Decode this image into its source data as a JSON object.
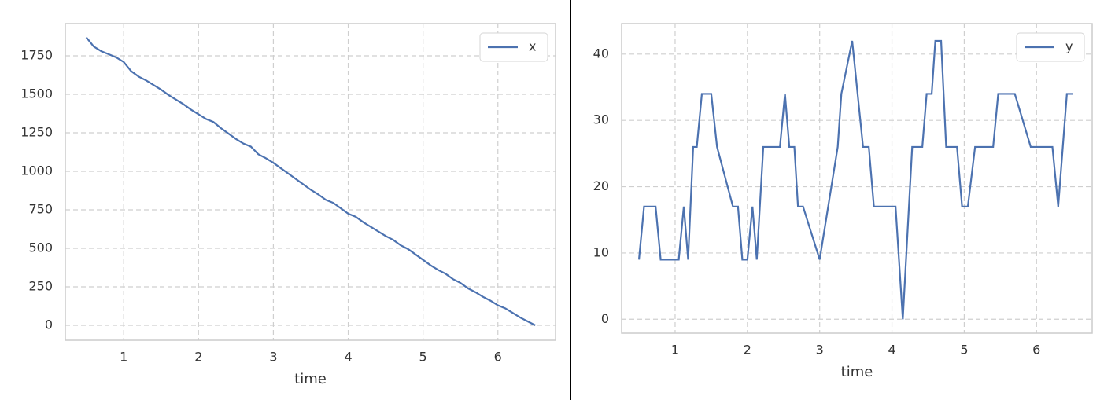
{
  "chart_data": [
    {
      "type": "line",
      "xlabel": "time",
      "x": [
        0.5,
        0.6,
        0.7,
        0.8,
        0.9,
        1.0,
        1.1,
        1.2,
        1.3,
        1.4,
        1.5,
        1.6,
        1.7,
        1.8,
        1.9,
        2.0,
        2.1,
        2.2,
        2.3,
        2.4,
        2.5,
        2.6,
        2.7,
        2.8,
        2.9,
        3.0,
        3.1,
        3.2,
        3.3,
        3.4,
        3.5,
        3.6,
        3.7,
        3.8,
        3.9,
        4.0,
        4.1,
        4.2,
        4.3,
        4.4,
        4.5,
        4.6,
        4.7,
        4.8,
        4.9,
        5.0,
        5.1,
        5.2,
        5.3,
        5.4,
        5.5,
        5.6,
        5.7,
        5.8,
        5.9,
        6.0,
        6.1,
        6.2,
        6.3,
        6.4,
        6.5
      ],
      "series": [
        {
          "name": "x",
          "color": "#4c72b0",
          "values": [
            1870,
            1810,
            1780,
            1760,
            1740,
            1710,
            1650,
            1615,
            1590,
            1560,
            1530,
            1495,
            1465,
            1435,
            1400,
            1370,
            1340,
            1320,
            1280,
            1245,
            1210,
            1180,
            1160,
            1110,
            1085,
            1055,
            1020,
            985,
            950,
            915,
            880,
            850,
            815,
            795,
            760,
            725,
            705,
            670,
            640,
            610,
            580,
            555,
            520,
            495,
            460,
            425,
            390,
            360,
            335,
            300,
            275,
            240,
            215,
            185,
            160,
            130,
            110,
            80,
            50,
            25,
            0
          ]
        }
      ],
      "xlim": [
        0.22,
        6.77
      ],
      "ylim": [
        -97,
        1959
      ],
      "xticks": [
        1,
        2,
        3,
        4,
        5,
        6
      ],
      "yticks": [
        0,
        250,
        500,
        750,
        1000,
        1250,
        1500,
        1750
      ],
      "grid": true,
      "legend": "upper right"
    },
    {
      "type": "line",
      "xlabel": "time",
      "x": [
        0.5,
        0.57,
        0.73,
        0.8,
        1.05,
        1.12,
        1.18,
        1.25,
        1.3,
        1.37,
        1.5,
        1.58,
        1.8,
        1.87,
        1.93,
        2.0,
        2.07,
        2.13,
        2.22,
        2.45,
        2.52,
        2.58,
        2.65,
        2.7,
        2.77,
        3.0,
        3.25,
        3.3,
        3.45,
        3.6,
        3.68,
        3.75,
        4.05,
        4.15,
        4.28,
        4.42,
        4.48,
        4.55,
        4.6,
        4.68,
        4.75,
        4.9,
        4.97,
        5.05,
        5.15,
        5.4,
        5.47,
        5.7,
        5.92,
        6.22,
        6.3,
        6.42,
        6.5
      ],
      "series": [
        {
          "name": "y",
          "color": "#4c72b0",
          "values": [
            9,
            17,
            17,
            9,
            9,
            17,
            9,
            26,
            26,
            34,
            34,
            26,
            17,
            17,
            9,
            9,
            17,
            9,
            26,
            26,
            34,
            26,
            26,
            17,
            17,
            9,
            26,
            34,
            42,
            26,
            26,
            17,
            17,
            0,
            26,
            26,
            34,
            34,
            42,
            42,
            26,
            26,
            17,
            17,
            26,
            26,
            34,
            34,
            26,
            26,
            17,
            34,
            34
          ]
        }
      ],
      "xlim": [
        0.26,
        6.77
      ],
      "ylim": [
        -2.1,
        44.6
      ],
      "xticks": [
        1,
        2,
        3,
        4,
        5,
        6
      ],
      "yticks": [
        0,
        10,
        20,
        30,
        40
      ],
      "grid": true,
      "legend": "upper right"
    }
  ]
}
